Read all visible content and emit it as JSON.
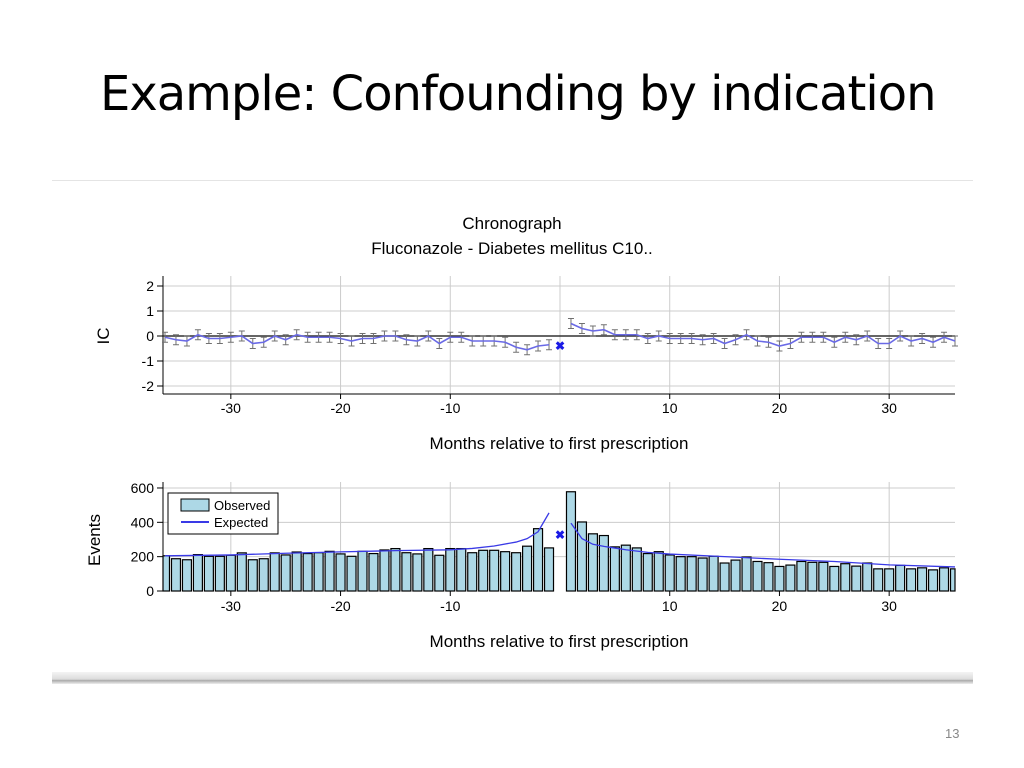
{
  "slide": {
    "title": "Example: Confounding by indication",
    "page_number": "13"
  },
  "chart_data": [
    {
      "type": "line",
      "title": "Chronograph",
      "subtitle": "Fluconazole - Diabetes mellitus C10..",
      "xlabel": "Months relative to first prescription",
      "ylabel": "IC",
      "xlim": [
        -36,
        36
      ],
      "ylim": [
        -2.2,
        2.2
      ],
      "xticks": [
        -30,
        -20,
        -10,
        10,
        20,
        30
      ],
      "yticks": [
        2,
        1,
        0,
        -1,
        -2
      ],
      "grid": true,
      "colors": {
        "line": "#6a6ae6",
        "errorbar": "#707070",
        "marker": "#1a1ae6",
        "zero_line": "#333333"
      },
      "series": [
        {
          "x": [
            -36,
            -35,
            -34,
            -33,
            -32,
            -31,
            -30,
            -29,
            -28,
            -27,
            -26,
            -25,
            -24,
            -23,
            -22,
            -21,
            -20,
            -19,
            -18,
            -17,
            -16,
            -15,
            -14,
            -13,
            -12,
            -11,
            -10,
            -9,
            -8,
            -7,
            -6,
            -5,
            -4,
            -3,
            -2,
            -1
          ],
          "y": [
            -0.05,
            -0.15,
            -0.2,
            0.05,
            -0.1,
            -0.1,
            -0.05,
            0,
            -0.3,
            -0.25,
            0,
            -0.15,
            0.05,
            -0.05,
            -0.05,
            -0.05,
            -0.1,
            -0.2,
            -0.1,
            -0.1,
            0,
            0,
            -0.15,
            -0.2,
            0,
            -0.3,
            -0.05,
            -0.05,
            -0.2,
            -0.2,
            -0.2,
            -0.25,
            -0.45,
            -0.55,
            -0.4,
            -0.35
          ],
          "error": 0.2
        },
        {
          "x": [
            1,
            2,
            3,
            4,
            5,
            6,
            7,
            8,
            9,
            10,
            11,
            12,
            13,
            14,
            15,
            16,
            17,
            18,
            19,
            20,
            21,
            22,
            23,
            24,
            25,
            26,
            27,
            28,
            29,
            30,
            31,
            32,
            33,
            34,
            35,
            36
          ],
          "y": [
            0.5,
            0.3,
            0.2,
            0.25,
            0.05,
            0.05,
            0.05,
            -0.1,
            0,
            -0.1,
            -0.1,
            -0.1,
            -0.15,
            -0.1,
            -0.3,
            -0.15,
            0.05,
            -0.2,
            -0.25,
            -0.4,
            -0.3,
            -0.05,
            -0.05,
            -0.05,
            -0.25,
            -0.05,
            -0.15,
            0,
            -0.3,
            -0.3,
            0,
            -0.2,
            -0.1,
            -0.25,
            -0.05,
            -0.2
          ],
          "error": 0.2
        }
      ],
      "marker_at_zero": {
        "x": 0,
        "y": -0.4
      }
    },
    {
      "type": "bar",
      "xlabel": "Months relative to first prescription",
      "ylabel": "Events",
      "xlim": [
        -36,
        36
      ],
      "ylim": [
        0,
        620
      ],
      "xticks": [
        -30,
        -20,
        -10,
        10,
        20,
        30
      ],
      "yticks": [
        0,
        200,
        400,
        600
      ],
      "grid": true,
      "legend": {
        "placement": "top-left",
        "entries": [
          "Observed",
          "Expected"
        ]
      },
      "colors": {
        "bar": "#add8e6",
        "bar_edge": "#000000",
        "expected": "#3a3ae6",
        "marker": "#1a1ae6"
      },
      "observed": {
        "x": [
          -36,
          -35,
          -34,
          -33,
          -32,
          -31,
          -30,
          -29,
          -28,
          -27,
          -26,
          -25,
          -24,
          -23,
          -22,
          -21,
          -20,
          -19,
          -18,
          -17,
          -16,
          -15,
          -14,
          -13,
          -12,
          -11,
          -10,
          -9,
          -8,
          -7,
          -6,
          -5,
          -4,
          -3,
          -2,
          -1,
          1,
          2,
          3,
          4,
          5,
          6,
          7,
          8,
          9,
          10,
          11,
          12,
          13,
          14,
          15,
          16,
          17,
          18,
          19,
          20,
          21,
          22,
          23,
          24,
          25,
          26,
          27,
          28,
          29,
          30,
          31,
          32,
          33,
          34,
          35,
          36
        ],
        "y": [
          205,
          188,
          182,
          212,
          202,
          202,
          208,
          222,
          182,
          188,
          222,
          210,
          227,
          218,
          223,
          231,
          216,
          202,
          231,
          218,
          239,
          247,
          223,
          216,
          247,
          208,
          247,
          247,
          223,
          237,
          237,
          229,
          223,
          261,
          363,
          251,
          578,
          402,
          333,
          323,
          257,
          267,
          251,
          218,
          229,
          210,
          200,
          200,
          192,
          202,
          163,
          180,
          198,
          172,
          165,
          143,
          151,
          172,
          167,
          167,
          143,
          159,
          145,
          163,
          129,
          129,
          149,
          129,
          135,
          123,
          135,
          129
        ]
      },
      "expected": [
        {
          "x": [
            -36,
            -30,
            -25,
            -20,
            -15,
            -10,
            -8,
            -6,
            -4,
            -3,
            -2,
            -1
          ],
          "y": [
            205,
            210,
            220,
            228,
            235,
            240,
            248,
            262,
            285,
            305,
            345,
            455
          ]
        },
        {
          "x": [
            1,
            2,
            3,
            4,
            5,
            6,
            8,
            10,
            15,
            20,
            25,
            30,
            36
          ],
          "y": [
            395,
            305,
            272,
            260,
            250,
            240,
            225,
            215,
            200,
            185,
            172,
            152,
            140
          ]
        }
      ],
      "marker_at_zero": {
        "x": 0,
        "y": 325
      }
    }
  ]
}
